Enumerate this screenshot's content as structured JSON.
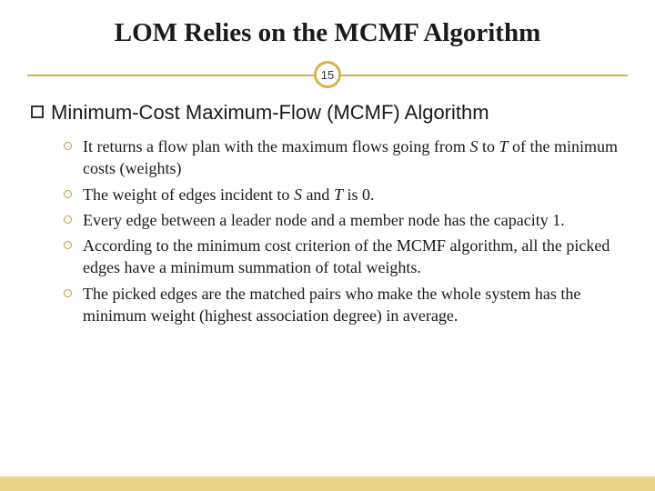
{
  "title": "LOM Relies on the MCMF Algorithm",
  "page_number": "15",
  "main_bullet": "Minimum-Cost Maximum-Flow (MCMF) Algorithm",
  "sub_bullets": {
    "b0_a": "It returns a flow plan with the maximum flows going from ",
    "b0_s": "S",
    "b0_b": " to ",
    "b0_t": "T",
    "b0_c": " of the minimum costs (weights)",
    "b1_a": "The weight of edges incident to ",
    "b1_s": "S",
    "b1_b": " and ",
    "b1_t": "T",
    "b1_c": " is 0.",
    "b2": "Every edge between a leader node and a member node has the capacity 1.",
    "b3": "According to the minimum cost criterion of the MCMF algorithm, all the picked edges have a minimum summation of total weights.",
    "b4": "The picked edges are the matched pairs who make the whole system has the minimum weight (highest association degree) in average."
  },
  "colors": {
    "accent": "#d4b545",
    "bullet_ring": "#c09838",
    "footer": "#e8d388",
    "text": "#1a1a1a",
    "background": "#ffffff"
  }
}
